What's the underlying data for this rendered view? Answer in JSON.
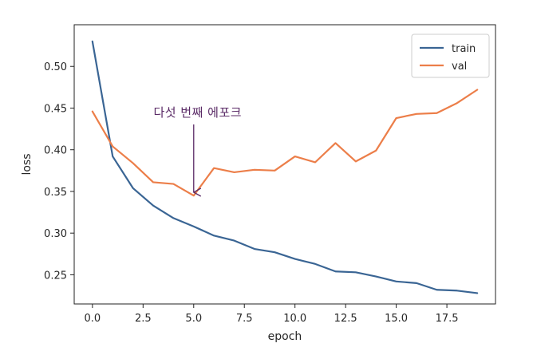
{
  "chart_data": {
    "type": "line",
    "title": "",
    "xlabel": "epoch",
    "ylabel": "loss",
    "xlim": [
      -0.9,
      19.9
    ],
    "ylim": [
      0.215,
      0.55
    ],
    "x_ticks": [
      0.0,
      2.5,
      5.0,
      7.5,
      10.0,
      12.5,
      15.0,
      17.5
    ],
    "x_tick_labels": [
      "0.0",
      "2.5",
      "5.0",
      "7.5",
      "10.0",
      "12.5",
      "15.0",
      "17.5"
    ],
    "y_ticks": [
      0.25,
      0.3,
      0.35,
      0.4,
      0.45,
      0.5
    ],
    "y_tick_labels": [
      "0.25",
      "0.30",
      "0.35",
      "0.40",
      "0.45",
      "0.50"
    ],
    "grid": false,
    "legend_position": "top-right",
    "x": [
      0,
      1,
      2,
      3,
      4,
      5,
      6,
      7,
      8,
      9,
      10,
      11,
      12,
      13,
      14,
      15,
      16,
      17,
      18,
      19
    ],
    "series": [
      {
        "name": "train",
        "color": "#3a6594",
        "values": [
          0.53,
          0.392,
          0.354,
          0.333,
          0.318,
          0.308,
          0.297,
          0.291,
          0.281,
          0.277,
          0.269,
          0.263,
          0.254,
          0.253,
          0.248,
          0.242,
          0.24,
          0.232,
          0.231,
          0.228
        ]
      },
      {
        "name": "val",
        "color": "#ec7e49",
        "values": [
          0.446,
          0.404,
          0.384,
          0.361,
          0.359,
          0.345,
          0.378,
          0.373,
          0.376,
          0.375,
          0.392,
          0.385,
          0.408,
          0.386,
          0.399,
          0.438,
          0.443,
          0.444,
          0.456,
          0.472
        ]
      }
    ],
    "annotations": [
      {
        "text": "다섯 번째 에포크",
        "arrow_to_x": 5,
        "arrow_to_y": 0.349,
        "color": "#5a2a66"
      }
    ]
  }
}
